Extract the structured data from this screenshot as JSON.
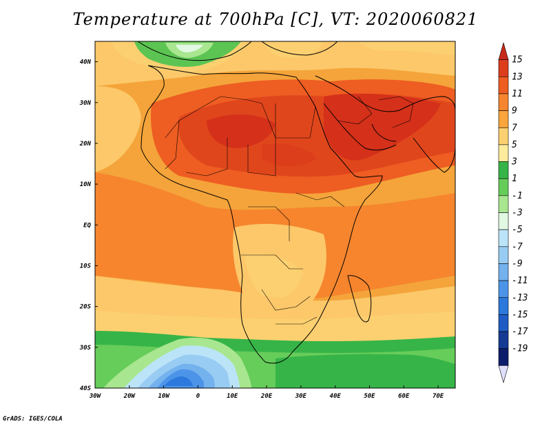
{
  "title": "Temperature at 700hPa [C], VT: 2020060821",
  "credit": "GrADS: IGES/COLA",
  "map": {
    "lat_labels": [
      "40N",
      "30N",
      "20N",
      "10N",
      "EQ",
      "10S",
      "20S",
      "30S",
      "40S"
    ],
    "lon_labels": [
      "30W",
      "20W",
      "10W",
      "0",
      "10E",
      "20E",
      "30E",
      "40E",
      "50E",
      "60E",
      "70E"
    ],
    "lat_range": [
      -40,
      45
    ],
    "lon_range": [
      -30,
      75
    ]
  },
  "colorbar": {
    "labels": [
      "15",
      "13",
      "11",
      "9",
      "7",
      "5",
      "3",
      "1",
      "-1",
      "-3",
      "-5",
      "-7",
      "-9",
      "-11",
      "-13",
      "-15",
      "-17",
      "-19"
    ],
    "colors": [
      "#c82a1a",
      "#dc3e1c",
      "#ee5d22",
      "#f6852e",
      "#faa63c",
      "#fcd070",
      "#fcec9c",
      "#36b448",
      "#66cc5a",
      "#a8e690",
      "#e2f8e2",
      "#bce4f8",
      "#98ccf2",
      "#74b2ee",
      "#4c94e8",
      "#2c78dc",
      "#1e5cc4",
      "#153a94",
      "#0c1c6a",
      "#e0e0fc"
    ]
  },
  "legend_colors": {
    "ocean_warm": "#f49a30",
    "land_hot": "#e8481e",
    "core_hot": "#d62c14",
    "cool_green": "#5cc452",
    "cold_blue": "#4c94e8"
  }
}
